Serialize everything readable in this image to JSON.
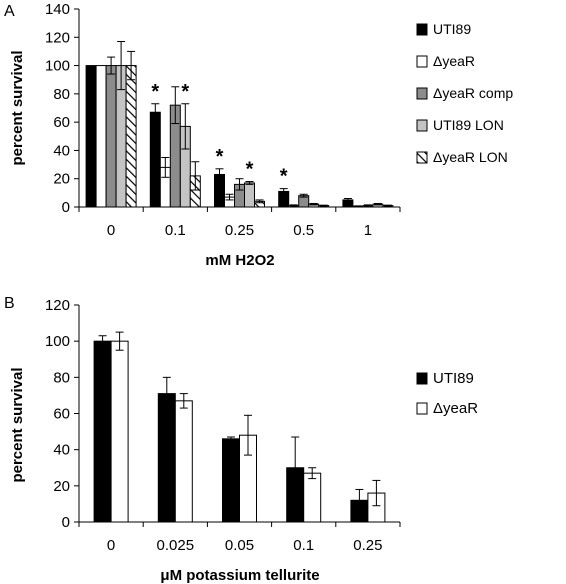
{
  "chart_data": [
    {
      "panel_label": "A",
      "type": "bar",
      "xlabel": "mM H2O2",
      "ylabel": "percent survival",
      "ylim": [
        0,
        140
      ],
      "yticks": [
        0,
        20,
        40,
        60,
        80,
        100,
        120,
        140
      ],
      "categories": [
        "0",
        "0.1",
        "0.25",
        "0.5",
        "1"
      ],
      "legend_position": "right",
      "grid": false,
      "series": [
        {
          "name": "UTI89",
          "pattern": "solid-black",
          "values": [
            100,
            67,
            23,
            11,
            5
          ],
          "errors": [
            0,
            6,
            4,
            2,
            1
          ]
        },
        {
          "name": "ΔyeaR",
          "pattern": "white",
          "values": [
            100,
            28,
            7,
            1,
            0.5
          ],
          "errors": [
            0,
            7,
            2,
            0.5,
            0.3
          ]
        },
        {
          "name": "ΔyeaR comp",
          "pattern": "dark-gray",
          "values": [
            100,
            72,
            16,
            8,
            1
          ],
          "errors": [
            6,
            13,
            4,
            1,
            0.5
          ]
        },
        {
          "name": "UTI89 LON",
          "pattern": "light-gray",
          "values": [
            100,
            57,
            17,
            2,
            2
          ],
          "errors": [
            17,
            16,
            1,
            0.5,
            0.5
          ]
        },
        {
          "name": "ΔyeaR LON",
          "pattern": "hatched",
          "values": [
            100,
            22,
            4,
            1,
            1
          ],
          "errors": [
            10,
            10,
            1,
            0.3,
            0.3
          ]
        }
      ],
      "significance_marks": [
        {
          "category": "0.1",
          "series": "UTI89",
          "label": "*"
        },
        {
          "category": "0.1",
          "series": "UTI89 LON",
          "label": "*"
        },
        {
          "category": "0.25",
          "series": "UTI89",
          "label": "*"
        },
        {
          "category": "0.25",
          "series": "UTI89 LON",
          "label": "*"
        },
        {
          "category": "0.5",
          "series": "UTI89",
          "label": "*"
        }
      ]
    },
    {
      "panel_label": "B",
      "type": "bar",
      "xlabel": "μM potassium tellurite",
      "ylabel": "percent survival",
      "ylim": [
        0,
        120
      ],
      "yticks": [
        0,
        20,
        40,
        60,
        80,
        100,
        120
      ],
      "categories": [
        "0",
        "0.025",
        "0.05",
        "0.1",
        "0.25"
      ],
      "legend_position": "right",
      "grid": false,
      "series": [
        {
          "name": "UTI89",
          "pattern": "solid-black",
          "values": [
            100,
            71,
            46,
            30,
            12
          ],
          "errors": [
            3,
            9,
            1,
            17,
            6
          ]
        },
        {
          "name": "ΔyeaR",
          "pattern": "white",
          "values": [
            100,
            67,
            48,
            27,
            16
          ],
          "errors": [
            5,
            4,
            11,
            3,
            7
          ]
        }
      ],
      "significance_marks": []
    }
  ],
  "colors": {
    "black": "#000000",
    "white": "#ffffff",
    "dark_gray": "#8c8c8c",
    "light_gray": "#c4c4c4",
    "axis": "#000000"
  }
}
